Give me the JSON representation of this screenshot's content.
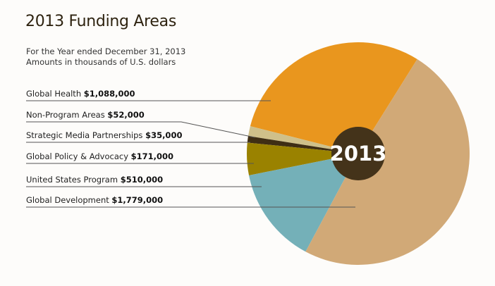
{
  "chart_data": {
    "type": "pie",
    "title": "2013 Funding Areas",
    "subtitle": [
      "For the Year ended December 31, 2013",
      "Amounts in thousands of U.S. dollars"
    ],
    "center_label": "2013",
    "slices": [
      {
        "label": "Global Health",
        "value_text": "$1,088,000",
        "value": 1088000,
        "color": "#e9961e"
      },
      {
        "label": "Non-Program Areas",
        "value_text": "$52,000",
        "value": 52000,
        "color": "#cfc08a"
      },
      {
        "label": "Strategic Media Partnerships",
        "value_text": "$35,000",
        "value": 35000,
        "color": "#3f2e14"
      },
      {
        "label": "Global Policy & Advocacy",
        "value_text": "$171,000",
        "value": 171000,
        "color": "#9a8200"
      },
      {
        "label": "United States Program",
        "value_text": "$510,000",
        "value": 510000,
        "color": "#74b0b8"
      },
      {
        "label": "Global Development",
        "value_text": "$1,779,000",
        "value": 1779000,
        "color": "#d1a977"
      }
    ],
    "center_color": "#44331a"
  }
}
